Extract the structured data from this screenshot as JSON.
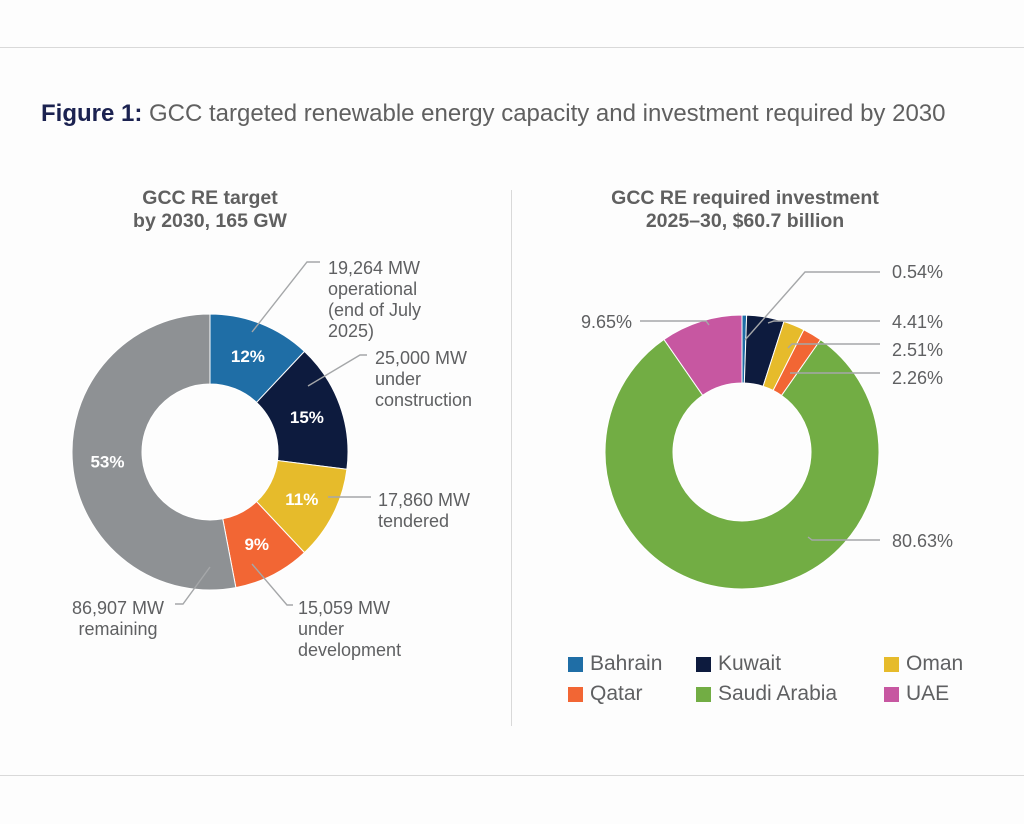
{
  "figure": {
    "lead": "Figure 1:",
    "title": "GCC targeted renewable energy capacity and investment required by 2030"
  },
  "chart_data": [
    {
      "type": "pie",
      "variant": "donut",
      "title": "GCC RE target by 2030, 165 GW",
      "title_lines": [
        "GCC RE target",
        "by 2030, 165 GW"
      ],
      "units": "percent",
      "slices": [
        {
          "key": "operational",
          "value": 12,
          "label": "12%",
          "annotation": [
            "19,264 MW",
            "operational",
            "(end of July",
            "2025)"
          ],
          "mw": 19264,
          "color": "#1f6ea6"
        },
        {
          "key": "under_construction",
          "value": 15,
          "label": "15%",
          "annotation": [
            "25,000 MW",
            "under",
            "construction"
          ],
          "mw": 25000,
          "color": "#0d1b3e"
        },
        {
          "key": "tendered",
          "value": 11,
          "label": "11%",
          "annotation": [
            "17,860 MW",
            "tendered"
          ],
          "mw": 17860,
          "color": "#e6bb2b"
        },
        {
          "key": "under_development",
          "value": 9,
          "label": "9%",
          "annotation": [
            "15,059 MW",
            "under",
            "development"
          ],
          "mw": 15059,
          "color": "#f26634"
        },
        {
          "key": "remaining",
          "value": 53,
          "label": "53%",
          "annotation": [
            "86,907 MW",
            "remaining"
          ],
          "mw": 86907,
          "color": "#8e9194"
        }
      ],
      "start": "top",
      "direction": "clockwise",
      "legend": "none"
    },
    {
      "type": "pie",
      "variant": "donut",
      "title": "GCC RE required investment 2025–30, $60.7 billion",
      "title_lines": [
        "GCC RE required investment",
        "2025–30, $60.7 billion"
      ],
      "units": "percent",
      "slices": [
        {
          "name": "Bahrain",
          "value": 0.54,
          "label": "0.54%",
          "color": "#1f6ea6"
        },
        {
          "name": "Kuwait",
          "value": 4.41,
          "label": "4.41%",
          "color": "#0d1b3e"
        },
        {
          "name": "Oman",
          "value": 2.51,
          "label": "2.51%",
          "color": "#e6bb2b"
        },
        {
          "name": "Qatar",
          "value": 2.26,
          "label": "2.26%",
          "color": "#f26634"
        },
        {
          "name": "Saudi Arabia",
          "value": 80.63,
          "label": "80.63%",
          "color": "#72ad44"
        },
        {
          "name": "UAE",
          "value": 9.65,
          "label": "9.65%",
          "color": "#c757a1"
        }
      ],
      "start": "top",
      "direction": "clockwise",
      "legend": "bottom"
    }
  ]
}
